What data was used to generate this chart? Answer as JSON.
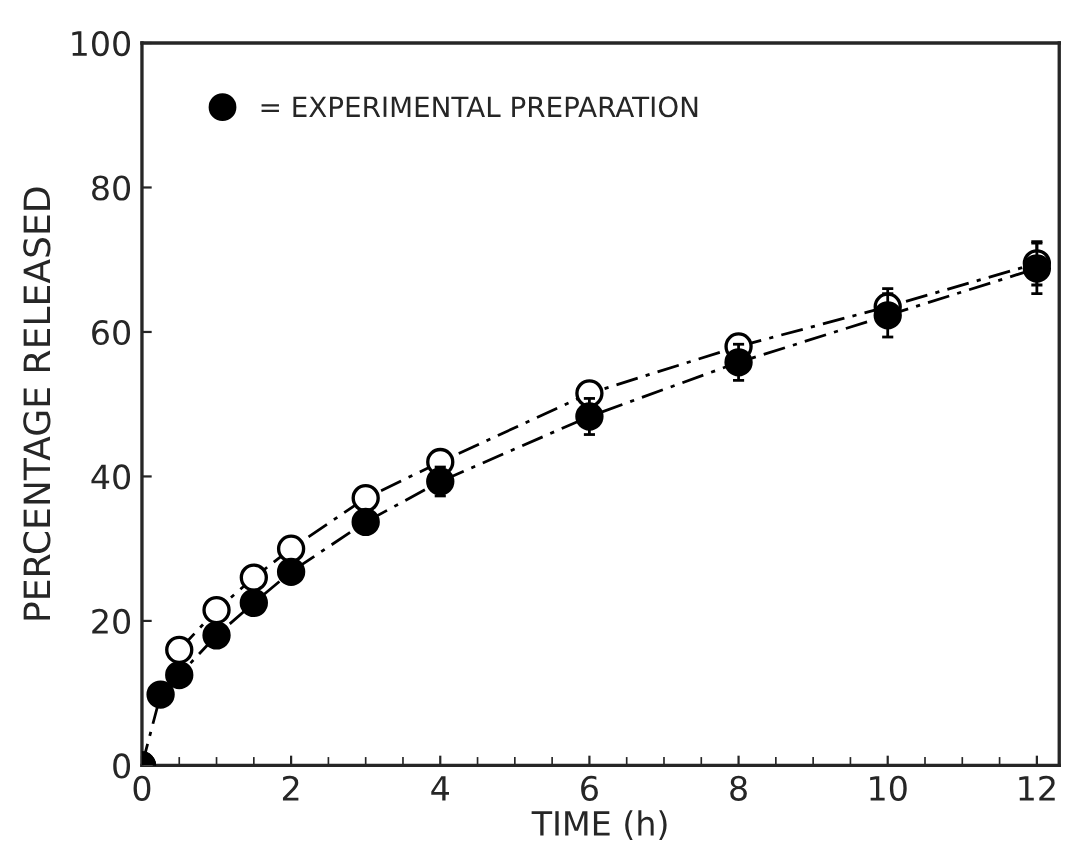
{
  "chart_data": {
    "type": "line",
    "xlabel": "TIME (h)",
    "ylabel": "PERCENTAGE RELEASED",
    "xlim": [
      0,
      12.3
    ],
    "ylim": [
      0,
      100
    ],
    "xticks": [
      0,
      {
        "value": 0.5,
        "label": null
      },
      {
        "value": 1,
        "label": null
      },
      {
        "value": 1.5,
        "label": null
      },
      2,
      {
        "value": 2.5,
        "label": null
      },
      {
        "value": 3,
        "label": null
      },
      {
        "value": 3.5,
        "label": null
      },
      4,
      {
        "value": 4.5,
        "label": null
      },
      {
        "value": 5,
        "label": null
      },
      {
        "value": 5.5,
        "label": null
      },
      6,
      {
        "value": 6.5,
        "label": null
      },
      {
        "value": 7,
        "label": null
      },
      {
        "value": 7.5,
        "label": null
      },
      8,
      {
        "value": 8.5,
        "label": null
      },
      {
        "value": 9,
        "label": null
      },
      {
        "value": 9.5,
        "label": null
      },
      10,
      {
        "value": 10.5,
        "label": null
      },
      {
        "value": 11,
        "label": null
      },
      {
        "value": 11.5,
        "label": null
      },
      12
    ],
    "yticks": [
      0,
      20,
      40,
      60,
      80,
      100
    ],
    "grid": false,
    "legend": "top left",
    "line_style": "dashed",
    "x": [
      0,
      0.25,
      0.5,
      1,
      1.5,
      2,
      3,
      4,
      6,
      8,
      10,
      12
    ],
    "series": [
      {
        "color": "#ffffff",
        "marker": "circle",
        "values": [
          0,
          null,
          16,
          21.5,
          26,
          30,
          37,
          42,
          51.5,
          58,
          63.5,
          69.5
        ],
        "errors": [
          null,
          null,
          null,
          null,
          null,
          null,
          null,
          null,
          null,
          null,
          2.5,
          3
        ]
      },
      {
        "name": "= EXPERIMENTAL PREPARATION",
        "color": "#000000",
        "marker": "circle",
        "values": [
          0,
          9.8,
          12.5,
          18,
          22.5,
          26.8,
          33.7,
          39.3,
          48.3,
          55.8,
          62.3,
          68.8
        ],
        "errors": [
          null,
          null,
          null,
          null,
          null,
          null,
          null,
          2,
          2.5,
          2.5,
          3,
          3.5
        ]
      }
    ]
  }
}
